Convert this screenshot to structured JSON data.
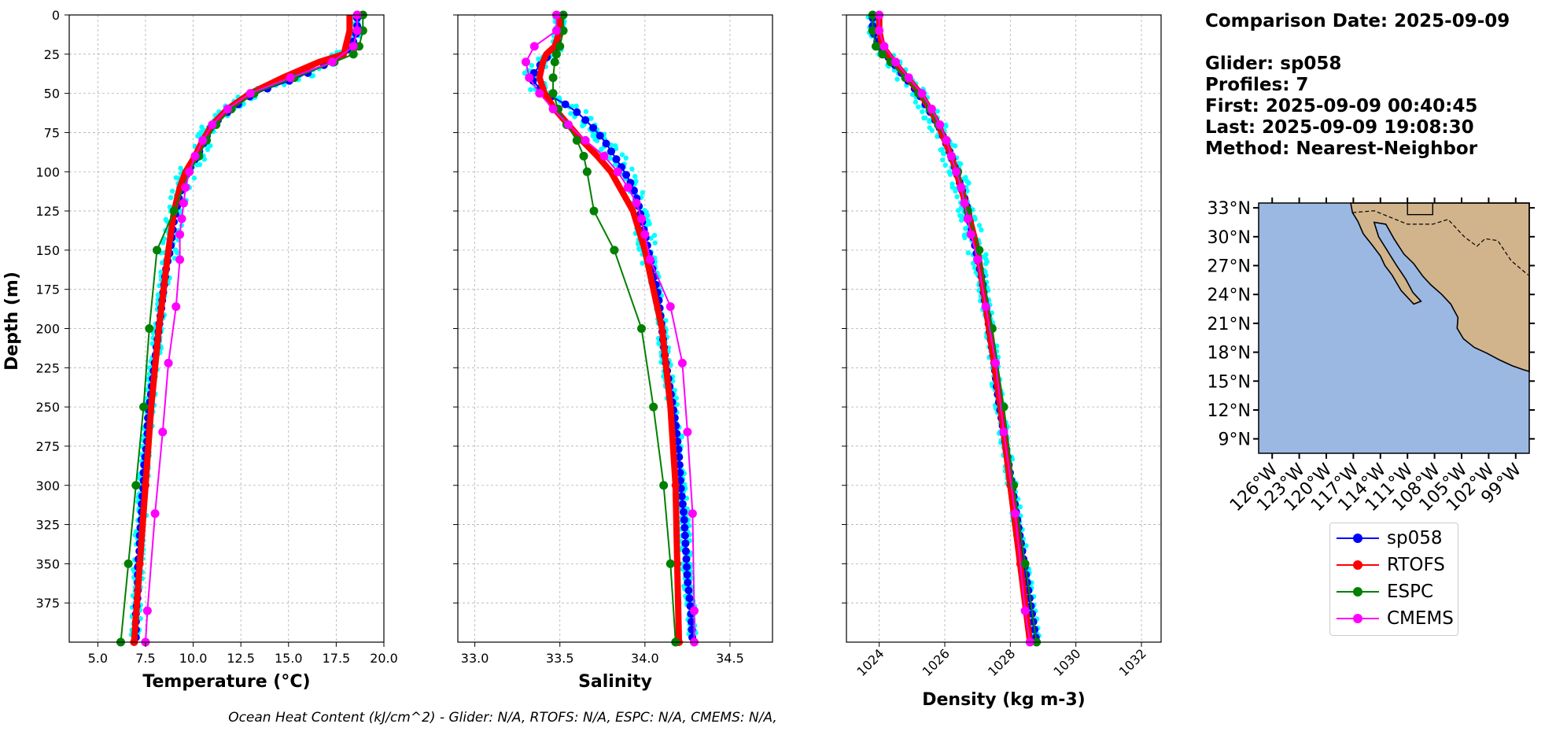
{
  "info": {
    "comparison_date": "Comparison Date: 2025-09-09",
    "glider": "Glider: sp058",
    "profiles": "Profiles: 7",
    "first": "First: 2025-09-09 00:40:45",
    "last": "Last: 2025-09-09 19:08:30",
    "method": "Method: Nearest-Neighbor"
  },
  "footer": "Ocean Heat Content (kJ/cm^2) - Glider: N/A,  RTOFS: N/A,  ESPC: N/A,  CMEMS: N/A,",
  "legend": [
    {
      "label": "sp058",
      "color": "#0000ff"
    },
    {
      "label": "RTOFS",
      "color": "#ff0000"
    },
    {
      "label": "ESPC",
      "color": "#008000"
    },
    {
      "label": "CMEMS",
      "color": "#ff00ff"
    }
  ],
  "colors": {
    "glider": "#0000ff",
    "raw": "#00ffff",
    "rtofs": "#ff0000",
    "espc": "#008000",
    "cmems": "#ff00ff",
    "ocean": "#9bb8e2",
    "land": "#d2b48c"
  },
  "chart_data": [
    {
      "type": "line",
      "xlabel": "Temperature (°C)",
      "ylabel": "Depth (m)",
      "xlim": [
        3.5,
        20.0
      ],
      "ylim": [
        400,
        0
      ],
      "xticks": [
        "5.0",
        "7.5",
        "10.0",
        "12.5",
        "15.0",
        "17.5",
        "20.0"
      ],
      "yticks": [
        "0",
        "25",
        "50",
        "75",
        "100",
        "125",
        "150",
        "175",
        "200",
        "225",
        "250",
        "275",
        "300",
        "325",
        "350",
        "375"
      ],
      "grid": true,
      "series": [
        {
          "name": "sp058",
          "depth": [
            2,
            10,
            20,
            30,
            40,
            50,
            60,
            70,
            80,
            90,
            100,
            110,
            120,
            130,
            140,
            150,
            160,
            170,
            180,
            190,
            200,
            210,
            220,
            230,
            240,
            250,
            260,
            270,
            280,
            290,
            300,
            310,
            320,
            330,
            340,
            350,
            360,
            370,
            380,
            390,
            400
          ],
          "values": [
            18.6,
            18.6,
            18.3,
            17.2,
            15.5,
            13.2,
            12.0,
            11.0,
            10.6,
            10.2,
            9.7,
            9.4,
            9.2,
            9.0,
            8.9,
            8.8,
            8.6,
            8.5,
            8.4,
            8.3,
            8.2,
            8.1,
            8.0,
            7.9,
            7.8,
            7.7,
            7.6,
            7.6,
            7.5,
            7.4,
            7.4,
            7.3,
            7.3,
            7.2,
            7.2,
            7.1,
            7.1,
            7.1,
            7.0,
            7.0,
            7.0
          ]
        },
        {
          "name": "RTOFS",
          "depth": [
            0,
            10,
            20,
            25,
            30,
            40,
            50,
            60,
            70,
            80,
            90,
            100,
            110,
            125,
            150,
            200,
            250,
            300,
            350,
            400
          ],
          "values": [
            18.2,
            18.2,
            18.0,
            17.9,
            16.6,
            14.7,
            13.0,
            11.8,
            11.0,
            10.5,
            10.1,
            9.6,
            9.3,
            9.0,
            8.7,
            8.2,
            7.8,
            7.5,
            7.2,
            6.9
          ]
        },
        {
          "name": "ESPC",
          "depth": [
            0,
            10,
            20,
            25,
            30,
            40,
            50,
            60,
            70,
            80,
            90,
            100,
            125,
            150,
            200,
            250,
            300,
            350,
            400
          ],
          "values": [
            18.9,
            18.9,
            18.7,
            18.4,
            17.4,
            15.3,
            13.2,
            12.0,
            11.2,
            10.7,
            10.3,
            9.8,
            9.0,
            8.1,
            7.7,
            7.4,
            7.0,
            6.6,
            6.2
          ]
        },
        {
          "name": "CMEMS",
          "depth": [
            0,
            10,
            20,
            30,
            40,
            50,
            60,
            70,
            80,
            90,
            100,
            110,
            120,
            130,
            140,
            156,
            186,
            222,
            266,
            318,
            380,
            400
          ],
          "values": [
            18.6,
            18.6,
            18.4,
            17.3,
            15.1,
            13.0,
            11.8,
            11.0,
            10.5,
            10.1,
            9.8,
            9.6,
            9.5,
            9.4,
            9.3,
            9.3,
            9.1,
            8.7,
            8.4,
            8.0,
            7.6,
            7.5
          ]
        }
      ]
    },
    {
      "type": "line",
      "xlabel": "Salinity",
      "xlim": [
        32.9,
        34.75
      ],
      "ylim": [
        400,
        0
      ],
      "xticks": [
        "33.0",
        "33.5",
        "34.0",
        "34.5"
      ],
      "grid": true,
      "series": [
        {
          "name": "sp058",
          "depth": [
            2,
            10,
            20,
            30,
            35,
            40,
            45,
            50,
            55,
            60,
            70,
            80,
            90,
            100,
            110,
            120,
            130,
            140,
            150,
            160,
            170,
            180,
            190,
            200,
            220,
            240,
            260,
            280,
            300,
            320,
            340,
            360,
            380,
            400
          ],
          "values": [
            33.5,
            33.5,
            33.48,
            33.4,
            33.36,
            33.33,
            33.36,
            33.42,
            33.5,
            33.58,
            33.68,
            33.76,
            33.82,
            33.88,
            33.93,
            33.96,
            33.98,
            34.0,
            34.02,
            34.04,
            34.06,
            34.08,
            34.09,
            34.1,
            34.12,
            34.15,
            34.18,
            34.2,
            34.21,
            34.23,
            34.24,
            34.25,
            34.27,
            34.28
          ]
        },
        {
          "name": "RTOFS",
          "depth": [
            0,
            10,
            20,
            25,
            30,
            40,
            50,
            60,
            70,
            80,
            90,
            100,
            125,
            150,
            175,
            200,
            250,
            300,
            350,
            400
          ],
          "values": [
            33.5,
            33.5,
            33.47,
            33.42,
            33.4,
            33.38,
            33.41,
            33.47,
            33.55,
            33.63,
            33.72,
            33.8,
            33.93,
            34.0,
            34.05,
            34.1,
            34.15,
            34.18,
            34.19,
            34.2
          ]
        },
        {
          "name": "ESPC",
          "depth": [
            0,
            10,
            20,
            25,
            30,
            40,
            50,
            60,
            70,
            80,
            90,
            100,
            125,
            150,
            200,
            250,
            300,
            350,
            400
          ],
          "values": [
            33.52,
            33.52,
            33.5,
            33.48,
            33.47,
            33.46,
            33.46,
            33.49,
            33.54,
            33.6,
            33.64,
            33.66,
            33.7,
            33.82,
            33.98,
            34.05,
            34.11,
            34.15,
            34.18
          ]
        },
        {
          "name": "CMEMS",
          "depth": [
            0,
            10,
            20,
            30,
            40,
            50,
            60,
            70,
            80,
            90,
            100,
            110,
            120,
            130,
            140,
            156,
            186,
            222,
            266,
            318,
            380,
            400
          ],
          "values": [
            33.48,
            33.48,
            33.35,
            33.3,
            33.32,
            33.38,
            33.46,
            33.55,
            33.65,
            33.76,
            33.84,
            33.9,
            33.95,
            33.98,
            34.0,
            34.03,
            34.15,
            34.22,
            34.25,
            34.28,
            34.29,
            34.29
          ]
        }
      ]
    },
    {
      "type": "line",
      "xlabel": "Density (kg m-3)",
      "xlim": [
        1023.0,
        1032.6
      ],
      "ylim": [
        400,
        0
      ],
      "xticks": [
        "1024",
        "1026",
        "1028",
        "1030",
        "1032"
      ],
      "grid": true,
      "series": [
        {
          "name": "sp058",
          "depth": [
            2,
            10,
            20,
            30,
            40,
            50,
            60,
            70,
            80,
            90,
            100,
            110,
            120,
            130,
            140,
            150,
            160,
            170,
            180,
            190,
            200,
            220,
            240,
            260,
            280,
            300,
            320,
            340,
            360,
            380,
            400
          ],
          "values": [
            1023.8,
            1023.8,
            1024.0,
            1024.4,
            1024.8,
            1025.2,
            1025.5,
            1025.8,
            1026.0,
            1026.2,
            1026.35,
            1026.5,
            1026.65,
            1026.75,
            1026.85,
            1026.95,
            1027.05,
            1027.15,
            1027.2,
            1027.3,
            1027.35,
            1027.5,
            1027.6,
            1027.75,
            1027.9,
            1028.05,
            1028.2,
            1028.35,
            1028.5,
            1028.65,
            1028.8
          ]
        },
        {
          "name": "RTOFS",
          "depth": [
            0,
            10,
            20,
            30,
            40,
            50,
            60,
            70,
            80,
            90,
            100,
            125,
            150,
            200,
            250,
            300,
            350,
            400
          ],
          "values": [
            1024.0,
            1024.0,
            1024.1,
            1024.45,
            1024.85,
            1025.25,
            1025.55,
            1025.8,
            1026.0,
            1026.2,
            1026.35,
            1026.7,
            1027.0,
            1027.35,
            1027.7,
            1028.0,
            1028.3,
            1028.6
          ]
        },
        {
          "name": "ESPC",
          "depth": [
            0,
            10,
            20,
            25,
            30,
            40,
            50,
            60,
            70,
            80,
            90,
            100,
            125,
            150,
            200,
            250,
            300,
            350,
            400
          ],
          "values": [
            1023.8,
            1023.8,
            1023.9,
            1024.1,
            1024.35,
            1024.8,
            1025.2,
            1025.55,
            1025.8,
            1026.05,
            1026.2,
            1026.4,
            1026.7,
            1027.05,
            1027.45,
            1027.8,
            1028.1,
            1028.45,
            1028.8
          ]
        },
        {
          "name": "CMEMS",
          "depth": [
            0,
            10,
            20,
            30,
            40,
            50,
            60,
            70,
            80,
            90,
            100,
            110,
            120,
            130,
            140,
            156,
            186,
            222,
            266,
            318,
            380,
            400
          ],
          "values": [
            1024.0,
            1024.0,
            1024.15,
            1024.5,
            1024.9,
            1025.3,
            1025.6,
            1025.85,
            1026.05,
            1026.2,
            1026.35,
            1026.5,
            1026.6,
            1026.7,
            1026.8,
            1027.0,
            1027.25,
            1027.55,
            1027.8,
            1028.15,
            1028.45,
            1028.6
          ]
        }
      ]
    }
  ],
  "map": {
    "lat_labels": [
      "33°N",
      "30°N",
      "27°N",
      "24°N",
      "21°N",
      "18°N",
      "15°N",
      "12°N",
      "9°N"
    ],
    "lon_labels": [
      "126°W",
      "123°W",
      "120°W",
      "117°W",
      "114°W",
      "111°W",
      "108°W",
      "105°W",
      "102°W",
      "99°W"
    ]
  }
}
